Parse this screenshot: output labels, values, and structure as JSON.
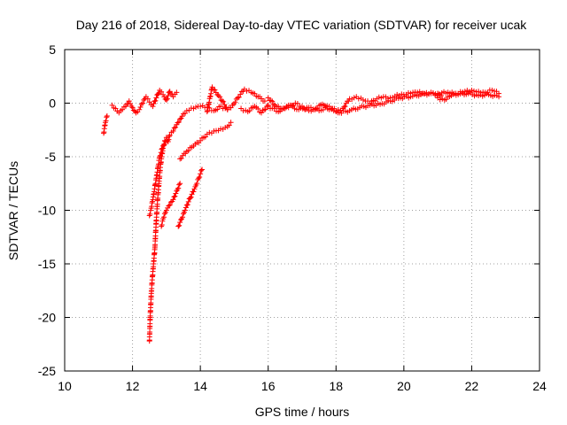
{
  "chart_data": {
    "type": "scatter",
    "title": "Day 216 of 2018, Sidereal Day-to-day VTEC variation (SDTVAR) for receiver ucak",
    "xlabel": "GPS time / hours",
    "ylabel": "SDTVAR / TECUs",
    "xlim": [
      10,
      24
    ],
    "ylim": [
      -25,
      5
    ],
    "xticks": [
      "10",
      "12",
      "14",
      "16",
      "18",
      "20",
      "22",
      "24"
    ],
    "yticks": [
      "5",
      "0",
      "-5",
      "-10",
      "-15",
      "-20",
      "-25"
    ],
    "grid": true,
    "marker": "plus",
    "series": [
      {
        "name": "SDTVAR",
        "color": "#ff0000",
        "segments": [
          {
            "x": [
              11.15,
              11.2,
              11.25
            ],
            "y": [
              -2.8,
              -1.8,
              -1.2
            ]
          },
          {
            "x": [
              11.4,
              11.5,
              11.6,
              11.7,
              11.8,
              11.9,
              12.0,
              12.1,
              12.2,
              12.3,
              12.4
            ],
            "y": [
              -0.2,
              -0.5,
              -0.9,
              -0.6,
              -0.3,
              0.2,
              -0.4,
              -0.9,
              -0.6,
              0.0,
              0.6
            ]
          },
          {
            "x": [
              12.45,
              12.5,
              12.6,
              12.7,
              12.8,
              12.9,
              13.0,
              13.1,
              13.2,
              13.3
            ],
            "y": [
              0.4,
              0.1,
              -0.3,
              0.5,
              1.2,
              0.8,
              0.3,
              1.1,
              0.6,
              1.0
            ]
          },
          {
            "x": [
              12.5,
              12.52,
              12.55,
              12.58,
              12.62,
              12.66,
              12.7,
              12.74,
              12.78,
              12.82,
              12.86,
              12.9,
              12.95,
              13.0,
              13.05,
              13.1,
              13.2,
              13.3,
              13.4,
              13.5,
              13.6,
              13.8,
              14.0,
              14.2,
              14.4,
              14.6,
              14.8
            ],
            "y": [
              -22.2,
              -20.0,
              -18.0,
              -16.5,
              -15.0,
              -13.5,
              -11.0,
              -9.0,
              -7.5,
              -6.0,
              -5.0,
              -4.2,
              -3.5,
              -3.2,
              -3.6,
              -3.0,
              -2.6,
              -2.0,
              -1.5,
              -1.0,
              -0.7,
              -0.5,
              -0.3,
              -0.4,
              -0.7,
              -0.3,
              -0.6
            ]
          },
          {
            "x": [
              12.5,
              12.55,
              12.6,
              12.65,
              12.7,
              12.75,
              12.8,
              12.9,
              13.0
            ],
            "y": [
              -10.5,
              -9.8,
              -9.0,
              -8.0,
              -7.0,
              -6.0,
              -5.0,
              -4.0,
              -3.5
            ]
          },
          {
            "x": [
              12.85,
              12.9,
              13.0,
              13.1,
              13.2,
              13.3,
              13.4
            ],
            "y": [
              -11.5,
              -10.8,
              -10.0,
              -9.5,
              -9.0,
              -8.2,
              -7.5
            ]
          },
          {
            "x": [
              13.35,
              13.45,
              13.55,
              13.65,
              13.75,
              13.85,
              13.95,
              14.05
            ],
            "y": [
              -11.5,
              -10.8,
              -10.0,
              -9.2,
              -8.5,
              -7.8,
              -7.0,
              -6.2
            ]
          },
          {
            "x": [
              13.4,
              13.6,
              13.8,
              14.0,
              14.2,
              14.4,
              14.6,
              14.8,
              14.9
            ],
            "y": [
              -5.2,
              -4.5,
              -4.0,
              -3.5,
              -2.9,
              -2.6,
              -2.4,
              -2.2,
              -1.8
            ]
          },
          {
            "x": [
              14.2,
              14.35,
              14.5,
              14.65,
              14.8,
              14.95,
              15.1,
              15.3,
              15.5,
              15.7,
              15.9
            ],
            "y": [
              -0.8,
              1.5,
              0.8,
              0.2,
              -0.6,
              -0.2,
              0.5,
              1.3,
              1.0,
              0.6,
              0.2
            ]
          },
          {
            "x": [
              15.2,
              15.4,
              15.6,
              15.8,
              16.0
            ],
            "y": [
              -0.5,
              -0.8,
              -0.3,
              -0.9,
              -0.2
            ]
          },
          {
            "x": [
              16.0,
              16.2,
              16.4,
              16.6,
              16.8,
              17.0,
              17.2,
              17.4,
              17.6,
              17.8,
              18.0,
              18.2,
              18.4,
              18.6,
              18.8,
              19.0,
              19.2,
              19.4,
              19.6,
              19.8,
              20.0,
              20.2,
              20.4,
              20.6,
              20.8,
              21.0
            ],
            "y": [
              0.5,
              -0.2,
              -0.6,
              -0.4,
              0.0,
              -0.3,
              -0.7,
              -0.5,
              -0.1,
              -0.6,
              -0.8,
              -0.5,
              0.4,
              0.6,
              0.3,
              0.0,
              0.4,
              0.6,
              0.5,
              0.8,
              0.8,
              0.9,
              1.0,
              0.9,
              1.0,
              0.9
            ]
          },
          {
            "x": [
              16.0,
              16.3,
              16.6,
              16.9,
              17.2,
              17.5,
              17.8,
              18.1,
              18.4,
              18.7,
              19.0,
              19.3,
              19.6,
              19.9,
              20.2,
              20.5,
              20.8,
              21.1
            ],
            "y": [
              -0.3,
              -0.8,
              -0.2,
              -0.6,
              -0.4,
              -0.7,
              -0.3,
              -0.9,
              -0.7,
              -0.4,
              -0.2,
              -0.1,
              0.2,
              0.5,
              0.6,
              0.8,
              0.9,
              0.7
            ]
          },
          {
            "x": [
              21.0,
              21.2,
              21.4,
              21.6,
              21.8,
              22.0,
              22.2,
              22.4,
              22.6,
              22.8
            ],
            "y": [
              0.5,
              0.3,
              0.7,
              0.9,
              1.1,
              1.2,
              1.1,
              1.0,
              1.2,
              0.9
            ]
          },
          {
            "x": [
              21.0,
              21.3,
              21.6,
              21.9,
              22.2,
              22.5,
              22.8
            ],
            "y": [
              0.9,
              1.0,
              0.8,
              0.9,
              0.7,
              0.8,
              0.6
            ]
          }
        ]
      }
    ]
  }
}
